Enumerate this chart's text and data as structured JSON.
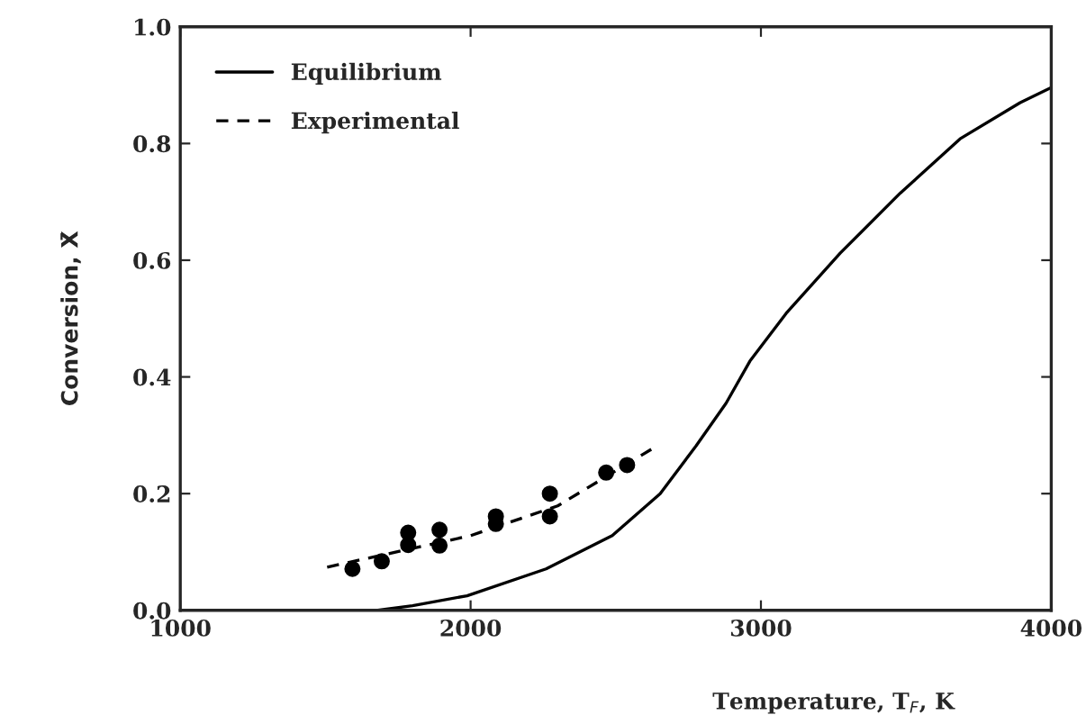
{
  "chart_data": {
    "type": "line",
    "xlabel": "Temperature, T$_{F}$, K",
    "ylabel": "Conversion, X̄",
    "xlim": [
      1000,
      4000
    ],
    "xticks": [
      1000,
      2000,
      3000,
      4000
    ],
    "ylim": [
      0,
      1.0
    ],
    "yticks": [
      {
        "value": 0,
        "label": "0.0"
      },
      0.2,
      0.4,
      0.6,
      0.8,
      {
        "value": 1.0,
        "label": "1.0"
      }
    ],
    "grid": false,
    "legend": "top left",
    "series": [
      {
        "name": "Equilibrium",
        "line_style": "solid",
        "color": "#000000",
        "x": [
          1680,
          1800,
          1988,
          2260,
          2488,
          2653,
          2777,
          2880,
          2962,
          3087,
          3273,
          3480,
          3686,
          3893,
          4000
        ],
        "values": [
          0,
          0.008,
          0.025,
          0.071,
          0.128,
          0.2,
          0.282,
          0.355,
          0.427,
          0.509,
          0.612,
          0.715,
          0.808,
          0.87,
          0.896
        ]
      },
      {
        "name": "Experimental",
        "line_style": "dashed",
        "color": "#000000",
        "x": [
          1506,
          2000,
          2300,
          2626
        ],
        "values": [
          0.074,
          0.128,
          0.179,
          0.277
        ]
      },
      {
        "type": "scatter",
        "marker": "circle",
        "color": "#000000",
        "x": [
          1593,
          1694,
          1785,
          1785,
          1893,
          1893,
          2087,
          2087,
          2273,
          2273,
          2467,
          2539
        ],
        "values": [
          0.071,
          0.084,
          0.133,
          0.112,
          0.138,
          0.111,
          0.161,
          0.148,
          0.2,
          0.161,
          0.236,
          0.249
        ]
      }
    ]
  }
}
